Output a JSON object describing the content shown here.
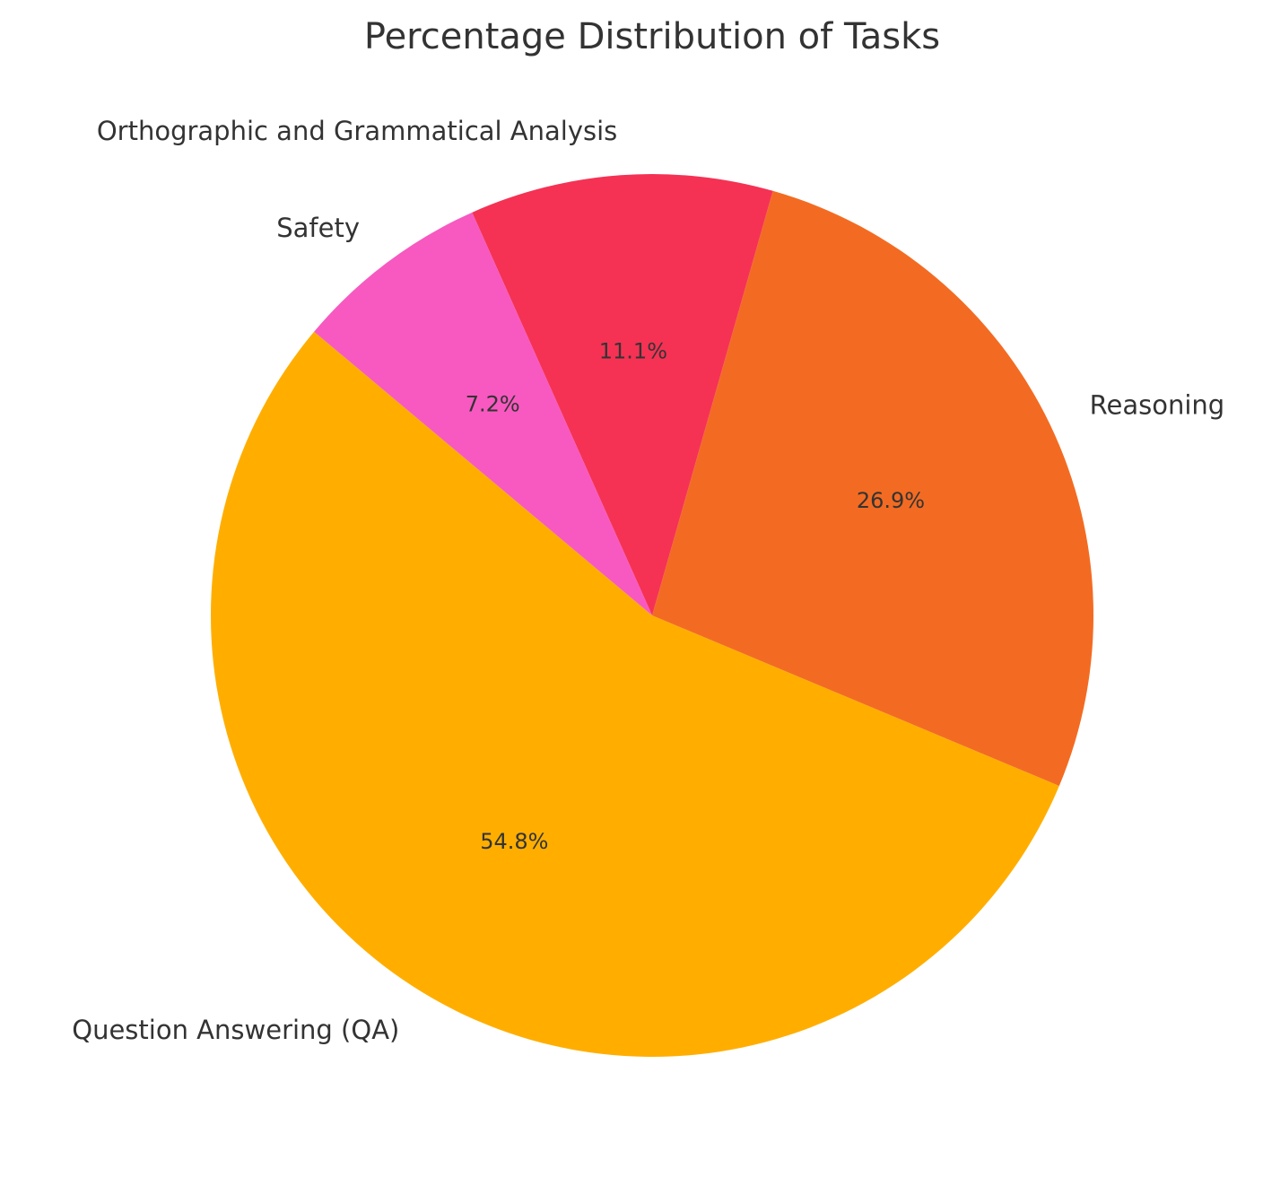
{
  "chart_data": {
    "type": "pie",
    "title": "Percentage Distribution of Tasks",
    "slices": [
      {
        "label": "Question Answering (QA)",
        "value": 54.8,
        "value_label": "54.8%",
        "color": "#FFAE00"
      },
      {
        "label": "Reasoning",
        "value": 26.9,
        "value_label": "26.9%",
        "color": "#F36B22"
      },
      {
        "label": "Orthographic and Grammatical Analysis",
        "value": 11.1,
        "value_label": "11.1%",
        "color": "#F53254"
      },
      {
        "label": "Safety",
        "value": 7.2,
        "value_label": "7.2%",
        "color": "#F759C0"
      }
    ],
    "start_angle_deg": 140,
    "direction": "counterclockwise",
    "legend": "none"
  }
}
